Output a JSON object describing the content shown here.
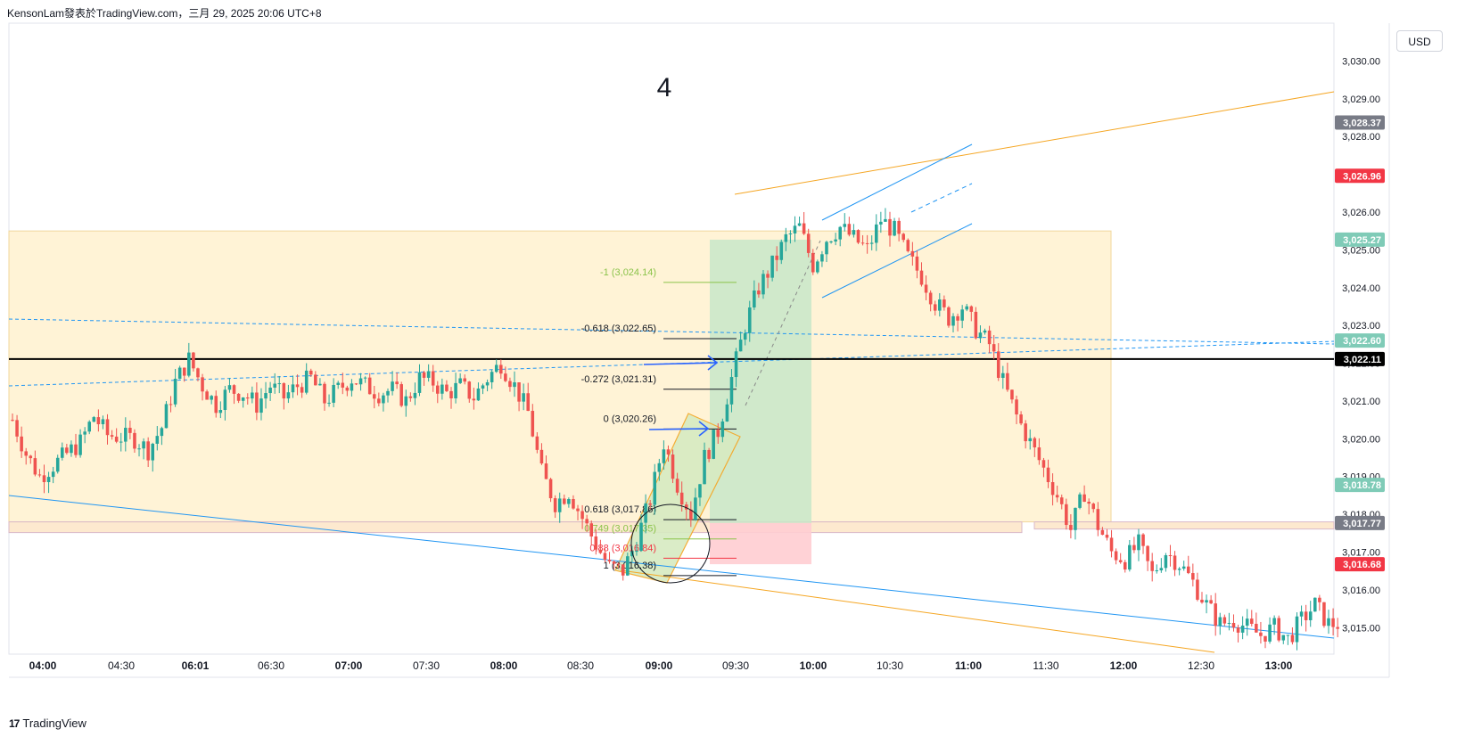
{
  "header": {
    "text": "KensonLam發表於TradingView.com，三月 29, 2025 20:06 UTC+8"
  },
  "footer": {
    "logo": "17",
    "brand": "TradingView"
  },
  "currency": "USD",
  "colors": {
    "bull": "#26a69a",
    "bear": "#ef5350",
    "zone": "#fff3d6",
    "fib_pos": "#8bc34a",
    "target_zone": "#c8e6c9",
    "stop_zone": "#ffcdd2",
    "orange": "#f5a623",
    "blue": "#2196f3",
    "black": "#000000"
  },
  "chart_data": {
    "type": "candlestick",
    "annotation_label": "4",
    "x_ticks": [
      "04:00",
      "04:30",
      "06:01",
      "06:30",
      "07:00",
      "07:30",
      "08:00",
      "08:30",
      "09:00",
      "09:30",
      "10:00",
      "10:30",
      "11:00",
      "11:30",
      "12:00",
      "12:30",
      "13:00"
    ],
    "y_ticks": [
      "3,015.00",
      "3,016.00",
      "3,017.00",
      "3,018.00",
      "3,019.00",
      "3,020.00",
      "3,021.00",
      "3,022.00",
      "3,023.00",
      "3,024.00",
      "3,025.00",
      "3,026.00",
      "3,027.00",
      "3,028.00",
      "3,029.00",
      "3,030.00"
    ],
    "ylim": [
      3014.3,
      3031.0
    ],
    "price_badges": [
      {
        "label": "3,028.37",
        "value": 3028.37,
        "color": "#787b86"
      },
      {
        "label": "3,026.96",
        "value": 3026.96,
        "color": "#f23645"
      },
      {
        "label": "3,025.27",
        "value": 3025.27,
        "color": "#7fcbb7"
      },
      {
        "label": "3,022.60",
        "value": 3022.6,
        "color": "#7fcbb7"
      },
      {
        "label": "3,022.11",
        "value": 3022.11,
        "color": "#000000"
      },
      {
        "label": "3,018.78",
        "value": 3018.78,
        "color": "#7fcbb7"
      },
      {
        "label": "3,017.77",
        "value": 3017.77,
        "color": "#787b86"
      },
      {
        "label": "3,016.68",
        "value": 3016.68,
        "color": "#f23645"
      }
    ],
    "fib_levels": [
      {
        "label": "-1 (3,024.14)",
        "value": 3024.14,
        "color": "#8bc34a"
      },
      {
        "label": "-0.618 (3,022.65)",
        "value": 3022.65,
        "color": "#131722"
      },
      {
        "label": "-0.272 (3,021.31)",
        "value": 3021.31,
        "color": "#131722"
      },
      {
        "label": "0 (3,020.26)",
        "value": 3020.26,
        "color": "#131722"
      },
      {
        "label": "0.618 (3,017.86)",
        "value": 3017.86,
        "color": "#131722"
      },
      {
        "label": "0.749 (3,017.35)",
        "value": 3017.35,
        "color": "#8bc34a"
      },
      {
        "label": "0.88 (3,016.84)",
        "value": 3016.84,
        "color": "#f23645"
      },
      {
        "label": "1 (3,016.38)",
        "value": 3016.38,
        "color": "#131722"
      }
    ],
    "horizontal_line": 3022.11,
    "series": [
      {
        "name": "price",
        "waypoints": [
          [
            0,
            3020.5
          ],
          [
            1,
            3019.6
          ],
          [
            2,
            3019.0
          ],
          [
            3,
            3019.3
          ],
          [
            5,
            3019.9
          ],
          [
            6,
            3020.6
          ],
          [
            7,
            3020.1
          ],
          [
            9,
            3020.0
          ],
          [
            10,
            3019.7
          ],
          [
            11,
            3020.3
          ],
          [
            12,
            3021.5
          ],
          [
            13,
            3022.1
          ],
          [
            14,
            3021.4
          ],
          [
            15,
            3020.9
          ],
          [
            16,
            3021.3
          ],
          [
            17,
            3021.2
          ],
          [
            18,
            3020.9
          ],
          [
            19,
            3021.4
          ],
          [
            20,
            3021.1
          ],
          [
            21,
            3021.4
          ],
          [
            22,
            3021.6
          ],
          [
            23,
            3021.0
          ],
          [
            24,
            3021.3
          ],
          [
            25,
            3021.6
          ],
          [
            26,
            3021.4
          ],
          [
            27,
            3021.2
          ],
          [
            28,
            3021.3
          ],
          [
            29,
            3021.0
          ],
          [
            30,
            3021.6
          ],
          [
            31,
            3021.5
          ],
          [
            32,
            3021.2
          ],
          [
            33,
            3021.4
          ],
          [
            34,
            3021.1
          ],
          [
            35,
            3021.6
          ],
          [
            36,
            3022.0
          ],
          [
            37,
            3021.4
          ],
          [
            38,
            3020.7
          ],
          [
            39,
            3019.1
          ],
          [
            40,
            3018.3
          ],
          [
            41,
            3018.6
          ],
          [
            42,
            3017.9
          ],
          [
            43,
            3017.2
          ],
          [
            44,
            3016.6
          ],
          [
            45,
            3016.5
          ],
          [
            46,
            3017.3
          ],
          [
            47,
            3018.4
          ],
          [
            48,
            3019.9
          ],
          [
            49,
            3018.8
          ],
          [
            50,
            3018.0
          ],
          [
            51,
            3019.5
          ],
          [
            52,
            3020.2
          ],
          [
            53,
            3021.6
          ],
          [
            54,
            3023.0
          ],
          [
            55,
            3024.0
          ],
          [
            56,
            3024.6
          ],
          [
            57,
            3025.3
          ],
          [
            58,
            3025.6
          ],
          [
            59,
            3024.6
          ],
          [
            60,
            3025.3
          ],
          [
            61,
            3025.6
          ],
          [
            62,
            3025.3
          ],
          [
            63,
            3025.0
          ],
          [
            64,
            3025.8
          ],
          [
            65,
            3025.5
          ],
          [
            66,
            3024.8
          ],
          [
            67,
            3024.3
          ],
          [
            68,
            3023.6
          ],
          [
            69,
            3023.2
          ],
          [
            70,
            3023.5
          ],
          [
            71,
            3022.9
          ],
          [
            72,
            3022.5
          ],
          [
            73,
            3021.5
          ],
          [
            74,
            3020.6
          ],
          [
            75,
            3019.9
          ],
          [
            76,
            3019.2
          ],
          [
            77,
            3018.5
          ],
          [
            78,
            3017.6
          ],
          [
            79,
            3018.6
          ],
          [
            80,
            3017.7
          ],
          [
            81,
            3017.0
          ],
          [
            82,
            3016.8
          ],
          [
            83,
            3017.2
          ],
          [
            84,
            3016.4
          ],
          [
            85,
            3017.0
          ],
          [
            86,
            3016.7
          ],
          [
            87,
            3016.2
          ],
          [
            88,
            3015.6
          ],
          [
            89,
            3015.1
          ],
          [
            90,
            3015.2
          ],
          [
            91,
            3015.0
          ],
          [
            92,
            3014.8
          ],
          [
            93,
            3015.0
          ],
          [
            94,
            3014.7
          ],
          [
            95,
            3015.2
          ],
          [
            96,
            3015.6
          ],
          [
            97,
            3015.1
          ]
        ]
      }
    ]
  }
}
